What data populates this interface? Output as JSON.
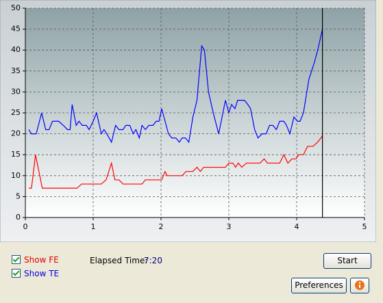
{
  "chart_data": {
    "type": "line",
    "xlim": [
      0,
      5
    ],
    "xticks": [
      0,
      1,
      2,
      3,
      4,
      5
    ],
    "ylim": [
      0,
      50
    ],
    "yticks": [
      0,
      5,
      10,
      15,
      20,
      25,
      30,
      35,
      40,
      45,
      50
    ],
    "grid": true,
    "cursor_x": 4.38,
    "cursor_color": "#000000",
    "series": [
      {
        "name": "TE",
        "color": "#0000ff",
        "x": [
          0.05,
          0.09,
          0.16,
          0.24,
          0.3,
          0.35,
          0.4,
          0.49,
          0.56,
          0.62,
          0.66,
          0.69,
          0.75,
          0.79,
          0.84,
          0.9,
          0.94,
          1.0,
          1.05,
          1.12,
          1.16,
          1.2,
          1.27,
          1.33,
          1.38,
          1.44,
          1.48,
          1.54,
          1.59,
          1.63,
          1.68,
          1.72,
          1.77,
          1.82,
          1.88,
          1.93,
          1.97,
          2.01,
          2.06,
          2.11,
          2.16,
          2.22,
          2.27,
          2.31,
          2.36,
          2.41,
          2.47,
          2.53,
          2.6,
          2.64,
          2.7,
          2.77,
          2.85,
          2.9,
          2.95,
          3.0,
          3.04,
          3.09,
          3.13,
          3.23,
          3.28,
          3.32,
          3.38,
          3.43,
          3.49,
          3.55,
          3.6,
          3.65,
          3.7,
          3.75,
          3.81,
          3.85,
          3.9,
          3.96,
          4.01,
          4.05,
          4.1,
          4.18,
          4.26,
          4.31,
          4.38
        ],
        "values": [
          21,
          20,
          20,
          25,
          21,
          21,
          23,
          23,
          22,
          21,
          21,
          27,
          22,
          23,
          22,
          22,
          21,
          23,
          25,
          20,
          21,
          20,
          18,
          22,
          21,
          21,
          22,
          22,
          20,
          21,
          19,
          22,
          21,
          22,
          22,
          23,
          23,
          26,
          23,
          20,
          19,
          19,
          18,
          19,
          19,
          18,
          24,
          28,
          41,
          40,
          30,
          25,
          20,
          24,
          28,
          25,
          27,
          26,
          28,
          28,
          27,
          26,
          21,
          19,
          20,
          20,
          22,
          22,
          21,
          23,
          23,
          22,
          20,
          24,
          23,
          23,
          25,
          33,
          37,
          40,
          45
        ]
      },
      {
        "name": "FE",
        "color": "#ff0000",
        "x": [
          0.05,
          0.09,
          0.15,
          0.25,
          0.76,
          0.83,
          1.12,
          1.19,
          1.27,
          1.32,
          1.38,
          1.44,
          1.72,
          1.77,
          2.01,
          2.06,
          2.09,
          2.31,
          2.37,
          2.47,
          2.53,
          2.58,
          2.63,
          2.95,
          3.0,
          3.06,
          3.1,
          3.14,
          3.19,
          3.26,
          3.46,
          3.52,
          3.57,
          3.75,
          3.81,
          3.87,
          3.93,
          3.99,
          4.03,
          4.1,
          4.16,
          4.24,
          4.31,
          4.38
        ],
        "values": [
          7,
          7,
          15,
          7,
          7,
          8,
          8,
          9,
          13,
          9,
          9,
          8,
          8,
          9,
          9,
          11,
          10,
          10,
          11,
          11,
          12,
          11,
          12,
          12,
          13,
          13,
          12,
          13,
          12,
          13,
          13,
          14,
          13,
          13,
          15,
          13,
          14,
          14,
          15,
          15,
          17,
          17,
          18,
          19.5
        ]
      }
    ]
  },
  "controls": {
    "show_fe": {
      "label": "Show FE",
      "checked": true
    },
    "show_te": {
      "label": "Show TE",
      "checked": true
    },
    "elapsed_label": "Elapsed Time:",
    "elapsed_value": "7:20",
    "start_button": "Start",
    "preferences_button": "Preferences"
  }
}
